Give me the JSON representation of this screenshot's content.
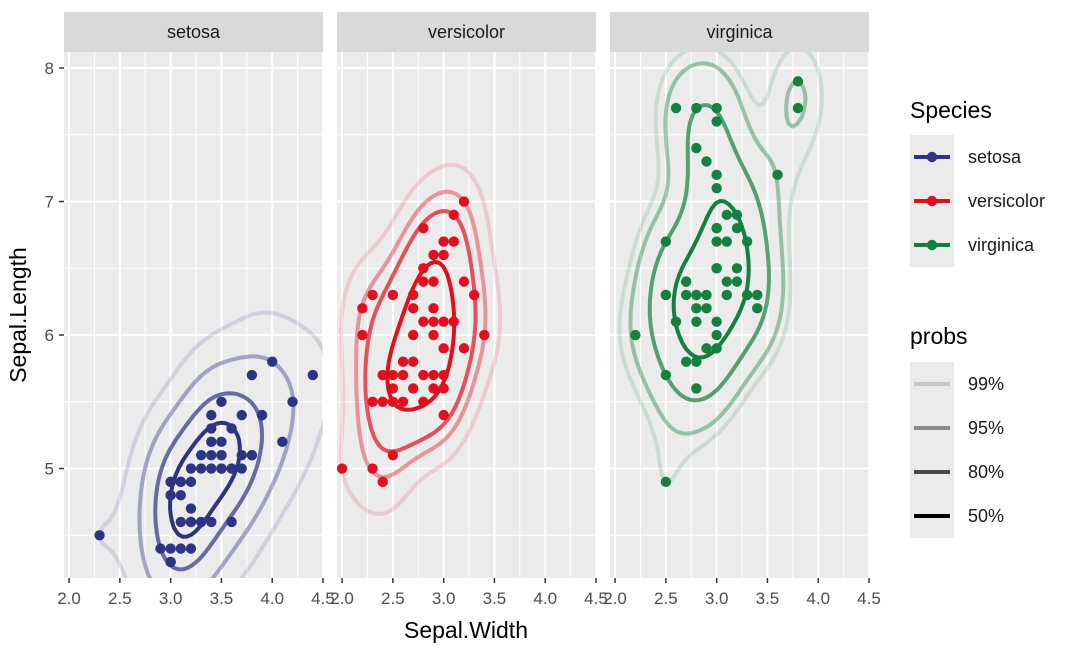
{
  "chart_data": {
    "type": "scatter",
    "subtype": "faceted scatter with 2D density contours (ggplot2 style)",
    "facets": [
      "setosa",
      "versicolor",
      "virginica"
    ],
    "xlabel": "Sepal.Width",
    "ylabel": "Sepal.Length",
    "xlim": [
      1.95,
      4.5
    ],
    "ylim": [
      4.18,
      8.12
    ],
    "x_ticks": [
      2.0,
      2.5,
      3.0,
      3.5,
      4.0,
      4.5
    ],
    "x_tick_labels": [
      "2.0",
      "2.5",
      "3.0",
      "3.5",
      "4.0",
      "4.5"
    ],
    "y_ticks": [
      5,
      6,
      7,
      8
    ],
    "y_tick_labels": [
      "5",
      "6",
      "7",
      "8"
    ],
    "grid": true,
    "legend": {
      "position": "right",
      "color_title": "Species",
      "color_entries": [
        {
          "label": "setosa",
          "color": "#2d3484"
        },
        {
          "label": "versicolor",
          "color": "#e0101f"
        },
        {
          "label": "virginica",
          "color": "#16803f"
        }
      ],
      "probs_title": "probs",
      "probs_entries": [
        {
          "label": "99%",
          "alpha": 0.15
        },
        {
          "label": "95%",
          "alpha": 0.4
        },
        {
          "label": "80%",
          "alpha": 0.7
        },
        {
          "label": "50%",
          "alpha": 1.0
        }
      ]
    },
    "series": [
      {
        "name": "setosa",
        "color": "#2d3484",
        "points": [
          [
            2.3,
            4.5
          ],
          [
            2.9,
            4.4
          ],
          [
            3.0,
            4.4
          ],
          [
            3.0,
            4.3
          ],
          [
            3.1,
            4.4
          ],
          [
            3.2,
            4.4
          ],
          [
            3.0,
            4.8
          ],
          [
            3.0,
            4.8
          ],
          [
            3.1,
            4.8
          ],
          [
            3.0,
            4.9
          ],
          [
            3.1,
            4.9
          ],
          [
            3.1,
            4.9
          ],
          [
            3.0,
            4.9
          ],
          [
            3.1,
            4.6
          ],
          [
            3.2,
            4.6
          ],
          [
            3.2,
            4.7
          ],
          [
            3.2,
            4.6
          ],
          [
            3.3,
            4.6
          ],
          [
            3.4,
            4.6
          ],
          [
            3.6,
            4.6
          ],
          [
            3.2,
            5.0
          ],
          [
            3.3,
            5.0
          ],
          [
            3.4,
            5.0
          ],
          [
            3.5,
            5.0
          ],
          [
            3.5,
            5.0
          ],
          [
            3.6,
            5.0
          ],
          [
            3.7,
            5.0
          ],
          [
            3.3,
            5.1
          ],
          [
            3.4,
            5.1
          ],
          [
            3.5,
            5.1
          ],
          [
            3.5,
            5.1
          ],
          [
            3.7,
            5.1
          ],
          [
            3.8,
            5.1
          ],
          [
            3.8,
            5.1
          ],
          [
            3.4,
            5.2
          ],
          [
            3.5,
            5.2
          ],
          [
            3.4,
            5.4
          ],
          [
            3.7,
            5.4
          ],
          [
            3.9,
            5.4
          ],
          [
            3.4,
            5.3
          ],
          [
            3.5,
            5.5
          ],
          [
            3.8,
            5.7
          ],
          [
            3.9,
            5.4
          ],
          [
            4.0,
            5.8
          ],
          [
            4.1,
            5.2
          ],
          [
            4.2,
            5.5
          ],
          [
            4.4,
            5.7
          ],
          [
            3.0,
            4.3
          ],
          [
            3.6,
            5.3
          ],
          [
            3.2,
            4.9
          ]
        ],
        "contours_note": "density contours at 99%, 95%, 80%, 50% levels"
      },
      {
        "name": "versicolor",
        "color": "#e0101f",
        "points": [
          [
            2.0,
            5.0
          ],
          [
            2.2,
            6.0
          ],
          [
            2.2,
            6.2
          ],
          [
            2.3,
            6.3
          ],
          [
            2.3,
            5.5
          ],
          [
            2.3,
            5.0
          ],
          [
            2.4,
            4.9
          ],
          [
            2.4,
            5.5
          ],
          [
            2.5,
            5.5
          ],
          [
            2.5,
            6.3
          ],
          [
            2.5,
            5.6
          ],
          [
            2.6,
            5.5
          ],
          [
            2.6,
            5.8
          ],
          [
            2.7,
            5.8
          ],
          [
            2.7,
            5.6
          ],
          [
            2.7,
            6.0
          ],
          [
            2.8,
            5.7
          ],
          [
            2.8,
            6.1
          ],
          [
            2.9,
            5.6
          ],
          [
            2.9,
            6.0
          ],
          [
            2.9,
            6.2
          ],
          [
            3.0,
            5.7
          ],
          [
            3.0,
            6.1
          ],
          [
            3.0,
            5.9
          ],
          [
            3.0,
            6.6
          ],
          [
            3.1,
            6.7
          ],
          [
            3.2,
            6.4
          ],
          [
            3.2,
            5.9
          ],
          [
            3.3,
            6.3
          ],
          [
            3.4,
            6.0
          ],
          [
            2.8,
            6.8
          ],
          [
            3.1,
            6.9
          ],
          [
            2.9,
            6.6
          ],
          [
            3.0,
            6.7
          ],
          [
            2.8,
            6.5
          ],
          [
            2.9,
            6.4
          ],
          [
            2.6,
            5.7
          ],
          [
            2.7,
            6.2
          ],
          [
            2.8,
            5.5
          ],
          [
            2.5,
            5.1
          ],
          [
            2.4,
            5.7
          ],
          [
            3.0,
            5.6
          ],
          [
            2.9,
            5.7
          ],
          [
            3.1,
            6.1
          ],
          [
            2.7,
            6.3
          ],
          [
            2.8,
            6.4
          ],
          [
            3.0,
            5.4
          ],
          [
            2.5,
            5.7
          ],
          [
            2.9,
            6.1
          ],
          [
            3.2,
            7.0
          ]
        ],
        "contours_note": "density contours at 99%, 95%, 80%, 50% levels"
      },
      {
        "name": "virginica",
        "color": "#16803f",
        "points": [
          [
            2.2,
            6.0
          ],
          [
            2.5,
            4.9
          ],
          [
            2.5,
            5.7
          ],
          [
            2.5,
            6.3
          ],
          [
            2.5,
            6.7
          ],
          [
            2.6,
            7.7
          ],
          [
            2.7,
            5.8
          ],
          [
            2.7,
            6.3
          ],
          [
            2.7,
            6.4
          ],
          [
            2.8,
            5.6
          ],
          [
            2.8,
            6.3
          ],
          [
            2.8,
            7.4
          ],
          [
            2.8,
            7.7
          ],
          [
            2.9,
            6.3
          ],
          [
            2.9,
            7.3
          ],
          [
            2.9,
            5.9
          ],
          [
            3.0,
            6.5
          ],
          [
            3.0,
            6.1
          ],
          [
            3.0,
            7.1
          ],
          [
            3.0,
            6.8
          ],
          [
            3.0,
            7.6
          ],
          [
            3.0,
            7.7
          ],
          [
            3.0,
            6.0
          ],
          [
            3.1,
            6.9
          ],
          [
            3.1,
            6.7
          ],
          [
            3.1,
            6.4
          ],
          [
            3.2,
            6.9
          ],
          [
            3.2,
            6.4
          ],
          [
            3.2,
            6.5
          ],
          [
            3.3,
            6.3
          ],
          [
            3.3,
            6.7
          ],
          [
            3.4,
            6.2
          ],
          [
            3.4,
            6.3
          ],
          [
            3.6,
            7.2
          ],
          [
            3.8,
            7.7
          ],
          [
            3.8,
            7.9
          ],
          [
            2.8,
            5.8
          ],
          [
            2.9,
            6.2
          ],
          [
            3.0,
            5.9
          ],
          [
            3.0,
            6.8
          ],
          [
            2.7,
            6.4
          ],
          [
            2.5,
            6.3
          ],
          [
            3.1,
            6.3
          ],
          [
            3.2,
            6.8
          ],
          [
            2.8,
            6.2
          ],
          [
            3.0,
            7.2
          ],
          [
            2.6,
            6.1
          ],
          [
            2.8,
            6.1
          ],
          [
            3.0,
            6.5
          ],
          [
            3.0,
            6.7
          ]
        ],
        "contours_note": "density contours at 99%, 95%, 80%, 50% levels"
      }
    ]
  }
}
